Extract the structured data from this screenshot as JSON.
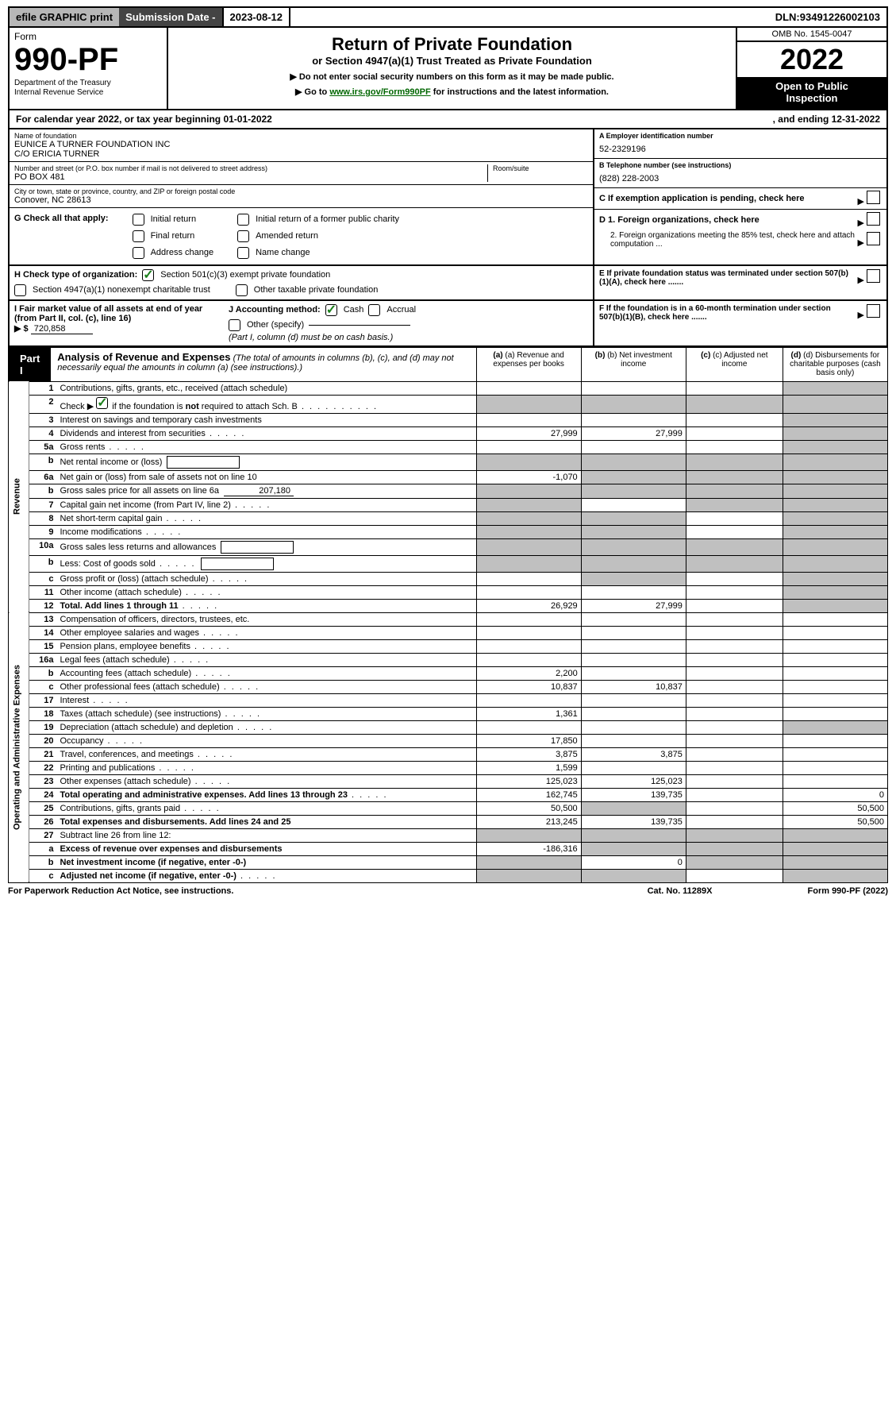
{
  "topbar": {
    "efile": "efile GRAPHIC print",
    "subdate_label": "Submission Date - ",
    "subdate": "2023-08-12",
    "dln_label": "DLN: ",
    "dln": "93491226002103"
  },
  "header": {
    "form_word": "Form",
    "form_no": "990-PF",
    "dept1": "Department of the Treasury",
    "dept2": "Internal Revenue Service",
    "title": "Return of Private Foundation",
    "subtitle": "or Section 4947(a)(1) Trust Treated as Private Foundation",
    "note1": "▶ Do not enter social security numbers on this form as it may be made public.",
    "note2_pre": "▶ Go to ",
    "note2_link": "www.irs.gov/Form990PF",
    "note2_post": " for instructions and the latest information.",
    "omb": "OMB No. 1545-0047",
    "year": "2022",
    "openpub1": "Open to Public",
    "openpub2": "Inspection"
  },
  "cal": {
    "text_pre": "For calendar year 2022, or tax year beginning ",
    "begin": "01-01-2022",
    "end_pre": ", and ending ",
    "end": "12-31-2022"
  },
  "entity": {
    "name_label": "Name of foundation",
    "name1": "EUNICE A TURNER FOUNDATION INC",
    "name2": "C/O ERICIA TURNER",
    "addr_label": "Number and street (or P.O. box number if mail is not delivered to street address)",
    "room_label": "Room/suite",
    "addr": "PO BOX 481",
    "city_label": "City or town, state or province, country, and ZIP or foreign postal code",
    "city": "Conover, NC  28613",
    "ein_label": "A Employer identification number",
    "ein": "52-2329196",
    "tel_label": "B Telephone number (see instructions)",
    "tel": "(828) 228-2003",
    "c_label": "C If exemption application is pending, check here",
    "d1": "D 1. Foreign organizations, check here",
    "d2": "2. Foreign organizations meeting the 85% test, check here and attach computation ...",
    "e": "E  If private foundation status was terminated under section 507(b)(1)(A), check here .......",
    "f": "F  If the foundation is in a 60-month termination under section 507(b)(1)(B), check here ......."
  },
  "g": {
    "label": "G Check all that apply:",
    "opts": [
      "Initial return",
      "Final return",
      "Address change",
      "Initial return of a former public charity",
      "Amended return",
      "Name change"
    ]
  },
  "h": {
    "label": "H Check type of organization:",
    "opt1": "Section 501(c)(3) exempt private foundation",
    "opt2": "Section 4947(a)(1) nonexempt charitable trust",
    "opt3": "Other taxable private foundation"
  },
  "i": {
    "label": "I Fair market value of all assets at end of year (from Part II, col. (c), line 16)",
    "arrow": "▶ $",
    "val": "720,858"
  },
  "j": {
    "label": "J Accounting method:",
    "opts": [
      "Cash",
      "Accrual",
      "Other (specify)"
    ],
    "note": "(Part I, column (d) must be on cash basis.)"
  },
  "part1": {
    "tab": "Part I",
    "title": "Analysis of Revenue and Expenses",
    "note": "(The total of amounts in columns (b), (c), and (d) may not necessarily equal the amounts in column (a) (see instructions).)"
  },
  "cols": {
    "a": "(a)  Revenue and expenses per books",
    "b": "(b)  Net investment income",
    "c": "(c)  Adjusted net income",
    "d": "(d)  Disbursements for charitable purposes (cash basis only)"
  },
  "sideRevenue": "Revenue",
  "sideExpenses": "Operating and Administrative Expenses",
  "rows": [
    {
      "n": "1",
      "d": "Contributions, gifts, grants, etc., received (attach schedule)",
      "a": "",
      "b": "",
      "c": "",
      "dcol": "",
      "dgrey": true
    },
    {
      "n": "2",
      "d": "Check ▶ ✔ if the foundation is not required to attach Sch. B",
      "dotted": true,
      "a": "_g",
      "b": "_g",
      "c": "_g",
      "dcol": "_g"
    },
    {
      "n": "3",
      "d": "Interest on savings and temporary cash investments",
      "a": "",
      "b": "",
      "c": "",
      "dcol": "",
      "dgrey": true
    },
    {
      "n": "4",
      "d": "Dividends and interest from securities",
      "dotted": true,
      "a": "27,999",
      "b": "27,999",
      "c": "",
      "dcol": "",
      "dgrey": true
    },
    {
      "n": "5a",
      "d": "Gross rents",
      "dotted": true,
      "a": "",
      "b": "",
      "c": "",
      "dcol": "",
      "dgrey": true
    },
    {
      "n": "b",
      "d": "Net rental income or (loss)",
      "inlinebox": true,
      "a": "_g",
      "b": "_g",
      "c": "_g",
      "dcol": "_g"
    },
    {
      "n": "6a",
      "d": "Net gain or (loss) from sale of assets not on line 10",
      "a": "-1,070",
      "b": "_g",
      "c": "_g",
      "dcol": "_g"
    },
    {
      "n": "b",
      "d": "Gross sales price for all assets on line 6a",
      "inlineval": "207,180",
      "a": "_g",
      "b": "_g",
      "c": "_g",
      "dcol": "_g"
    },
    {
      "n": "7",
      "d": "Capital gain net income (from Part IV, line 2)",
      "dotted": true,
      "a": "_g",
      "b": "",
      "c": "_g",
      "dcol": "_g"
    },
    {
      "n": "8",
      "d": "Net short-term capital gain",
      "dotted": true,
      "a": "_g",
      "b": "_g",
      "c": "",
      "dcol": "_g"
    },
    {
      "n": "9",
      "d": "Income modifications",
      "dotted": true,
      "a": "_g",
      "b": "_g",
      "c": "",
      "dcol": "_g"
    },
    {
      "n": "10a",
      "d": "Gross sales less returns and allowances",
      "inlinebox": true,
      "a": "_g",
      "b": "_g",
      "c": "_g",
      "dcol": "_g"
    },
    {
      "n": "b",
      "d": "Less: Cost of goods sold",
      "inlinebox": true,
      "dotted": true,
      "a": "_g",
      "b": "_g",
      "c": "_g",
      "dcol": "_g"
    },
    {
      "n": "c",
      "d": "Gross profit or (loss) (attach schedule)",
      "dotted": true,
      "a": "",
      "b": "_g",
      "c": "",
      "dcol": "_g"
    },
    {
      "n": "11",
      "d": "Other income (attach schedule)",
      "dotted": true,
      "a": "",
      "b": "",
      "c": "",
      "dcol": "_g"
    },
    {
      "n": "12",
      "d": "Total. Add lines 1 through 11",
      "bold": true,
      "dotted": true,
      "a": "26,929",
      "b": "27,999",
      "c": "",
      "dcol": "_g"
    },
    {
      "n": "13",
      "d": "Compensation of officers, directors, trustees, etc.",
      "a": "",
      "b": "",
      "c": "",
      "dcol": ""
    },
    {
      "n": "14",
      "d": "Other employee salaries and wages",
      "dotted": true,
      "a": "",
      "b": "",
      "c": "",
      "dcol": ""
    },
    {
      "n": "15",
      "d": "Pension plans, employee benefits",
      "dotted": true,
      "a": "",
      "b": "",
      "c": "",
      "dcol": ""
    },
    {
      "n": "16a",
      "d": "Legal fees (attach schedule)",
      "dotted": true,
      "a": "",
      "b": "",
      "c": "",
      "dcol": ""
    },
    {
      "n": "b",
      "d": "Accounting fees (attach schedule)",
      "dotted": true,
      "a": "2,200",
      "b": "",
      "c": "",
      "dcol": ""
    },
    {
      "n": "c",
      "d": "Other professional fees (attach schedule)",
      "dotted": true,
      "a": "10,837",
      "b": "10,837",
      "c": "",
      "dcol": ""
    },
    {
      "n": "17",
      "d": "Interest",
      "dotted": true,
      "a": "",
      "b": "",
      "c": "",
      "dcol": ""
    },
    {
      "n": "18",
      "d": "Taxes (attach schedule) (see instructions)",
      "dotted": true,
      "a": "1,361",
      "b": "",
      "c": "",
      "dcol": ""
    },
    {
      "n": "19",
      "d": "Depreciation (attach schedule) and depletion",
      "dotted": true,
      "a": "",
      "b": "",
      "c": "",
      "dcol": "",
      "dgrey": true
    },
    {
      "n": "20",
      "d": "Occupancy",
      "dotted": true,
      "a": "17,850",
      "b": "",
      "c": "",
      "dcol": ""
    },
    {
      "n": "21",
      "d": "Travel, conferences, and meetings",
      "dotted": true,
      "a": "3,875",
      "b": "3,875",
      "c": "",
      "dcol": ""
    },
    {
      "n": "22",
      "d": "Printing and publications",
      "dotted": true,
      "a": "1,599",
      "b": "",
      "c": "",
      "dcol": ""
    },
    {
      "n": "23",
      "d": "Other expenses (attach schedule)",
      "dotted": true,
      "a": "125,023",
      "b": "125,023",
      "c": "",
      "dcol": ""
    },
    {
      "n": "24",
      "d": "Total operating and administrative expenses. Add lines 13 through 23",
      "bold": true,
      "dotted": true,
      "a": "162,745",
      "b": "139,735",
      "c": "",
      "dcol": "0"
    },
    {
      "n": "25",
      "d": "Contributions, gifts, grants paid",
      "dotted": true,
      "a": "50,500",
      "b": "_g",
      "c": "",
      "dcol": "50,500"
    },
    {
      "n": "26",
      "d": "Total expenses and disbursements. Add lines 24 and 25",
      "bold": true,
      "a": "213,245",
      "b": "139,735",
      "c": "",
      "dcol": "50,500"
    },
    {
      "n": "27",
      "d": "Subtract line 26 from line 12:",
      "a": "_g",
      "b": "_g",
      "c": "_g",
      "dcol": "_g"
    },
    {
      "n": "a",
      "d": "Excess of revenue over expenses and disbursements",
      "bold": true,
      "a": "-186,316",
      "b": "_g",
      "c": "_g",
      "dcol": "_g"
    },
    {
      "n": "b",
      "d": "Net investment income (if negative, enter -0-)",
      "bold": true,
      "a": "_g",
      "b": "0",
      "c": "_g",
      "dcol": "_g"
    },
    {
      "n": "c",
      "d": "Adjusted net income (if negative, enter -0-)",
      "bold": true,
      "dotted": true,
      "a": "_g",
      "b": "_g",
      "c": "",
      "dcol": "_g"
    }
  ],
  "footer": {
    "left": "For Paperwork Reduction Act Notice, see instructions.",
    "mid": "Cat. No. 11289X",
    "right": "Form 990-PF (2022)"
  }
}
